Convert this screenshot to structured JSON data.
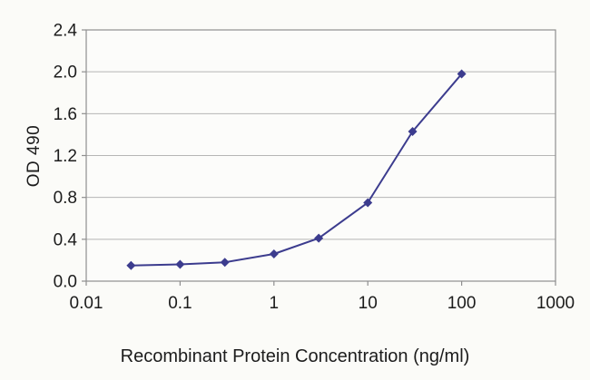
{
  "colors": {
    "line": "#3c3c8e",
    "grid": "#b5b5b5",
    "axis": "#8f8f8f",
    "text": "#1c1c1c",
    "background": "#fbfbf8",
    "plot_background": "#fcfcfa"
  },
  "chart_data": {
    "type": "line",
    "title": "",
    "xlabel": "Recombinant Protein Concentration (ng/ml)",
    "ylabel": "OD 490",
    "x_scale": "log",
    "xlim": [
      0.01,
      1000
    ],
    "ylim": [
      0,
      2.4
    ],
    "x_ticks": [
      0.01,
      0.1,
      1,
      10,
      100,
      1000
    ],
    "x_tick_labels": [
      "0.01",
      "0.1",
      "1",
      "10",
      "100",
      "1000"
    ],
    "y_ticks": [
      0,
      0.4,
      0.8,
      1.2,
      1.6,
      2.0,
      2.4
    ],
    "y_tick_labels": [
      "0.0",
      "0.4",
      "0.8",
      "1.2",
      "1.6",
      "2.0",
      "2.4"
    ],
    "grid": "horizontal",
    "legend": "none",
    "series": [
      {
        "name": "OD 490",
        "marker": "diamond",
        "color": "#3c3c8e",
        "x": [
          0.03,
          0.1,
          0.3,
          1,
          3,
          10,
          30,
          100
        ],
        "y": [
          0.15,
          0.16,
          0.18,
          0.26,
          0.41,
          0.75,
          1.43,
          1.98
        ]
      }
    ]
  }
}
